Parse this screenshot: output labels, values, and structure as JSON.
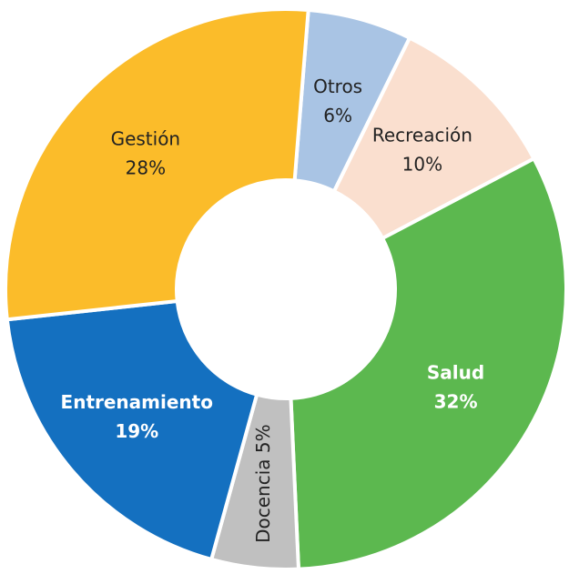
{
  "chart_data": {
    "type": "donut",
    "categories": [
      "Otros",
      "Recreación",
      "Salud",
      "Docencia",
      "Entrenamiento",
      "Gestión"
    ],
    "values": [
      6,
      10,
      32,
      5,
      19,
      28
    ],
    "value_labels": [
      "6%",
      "10%",
      "32%",
      "5%",
      "19%",
      "28%"
    ],
    "colors": [
      "#a9c4e4",
      "#fadfcf",
      "#5cb84f",
      "#c0c0c0",
      "#1470c0",
      "#fbbc2a"
    ]
  }
}
